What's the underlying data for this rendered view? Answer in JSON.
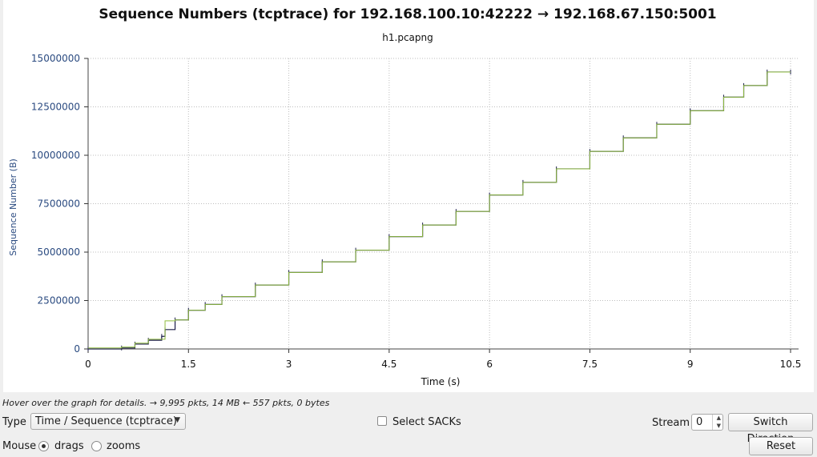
{
  "chart_data": {
    "type": "line",
    "title": "Sequence Numbers (tcptrace) for 192.168.100.10:42222 → 192.168.67.150:5001",
    "subtitle": "h1.pcapng",
    "xlabel": "Time (s)",
    "ylabel": "Sequence Number (B)",
    "xlim": [
      0,
      10.5
    ],
    "ylim": [
      0,
      15000000
    ],
    "x_ticks": [
      0,
      1.5,
      3,
      4.5,
      6,
      7.5,
      9,
      10.5
    ],
    "x_tick_labels": [
      "0",
      "1.5",
      "3",
      "4.5",
      "6",
      "7.5",
      "9",
      "10.5"
    ],
    "y_ticks": [
      0,
      2500000,
      5000000,
      7500000,
      10000000,
      12500000,
      15000000
    ],
    "y_tick_labels": [
      "0",
      "2500000",
      "5000000",
      "7500000",
      "10000000",
      "12500000",
      "15000000"
    ],
    "grid": true,
    "series": [
      {
        "color": "#1c1c4a",
        "x": [
          0.0,
          0.5,
          0.7,
          0.9,
          1.1,
          1.15,
          1.3,
          1.5,
          1.75,
          2.0,
          2.5,
          3.0,
          3.5,
          4.0,
          4.5,
          5.0,
          5.5,
          6.0,
          6.5,
          7.0,
          7.5,
          8.0,
          8.5,
          9.0,
          9.5,
          9.8,
          10.15,
          10.5
        ],
        "values": [
          0,
          50000,
          250000,
          450000,
          650000,
          1000000,
          1500000,
          2000000,
          2300000,
          2700000,
          3300000,
          3950000,
          4500000,
          5100000,
          5800000,
          6400000,
          7100000,
          7950000,
          8600000,
          9300000,
          10200000,
          10900000,
          11600000,
          12300000,
          13000000,
          13600000,
          14300000,
          14300000
        ]
      },
      {
        "color": "#8fbc3f",
        "x": [
          0.0,
          0.5,
          0.7,
          0.9,
          1.15,
          1.3,
          1.5,
          1.75,
          2.0,
          2.5,
          3.0,
          3.5,
          4.0,
          4.5,
          5.0,
          5.5,
          6.0,
          6.5,
          7.0,
          7.5,
          8.0,
          8.5,
          9.0,
          9.5,
          9.8,
          10.15,
          10.5
        ],
        "values": [
          50000,
          100000,
          300000,
          500000,
          1450000,
          1500000,
          2000000,
          2300000,
          2700000,
          3300000,
          3950000,
          4500000,
          5100000,
          5800000,
          6400000,
          7100000,
          7950000,
          8600000,
          9300000,
          10200000,
          10900000,
          11600000,
          12300000,
          13000000,
          13600000,
          14300000,
          14300000
        ]
      }
    ]
  },
  "status": {
    "text": "Hover over the graph for details. → 9,995 pkts, 14 MB ← 557 pkts, 0 bytes"
  },
  "controls": {
    "type_label": "Type",
    "type_value": "Time / Sequence (tcptrace)",
    "select_sacks_label": "Select SACKs",
    "select_sacks_checked": false,
    "stream_label": "Stream",
    "stream_value": "0",
    "switch_direction_label": "Switch Direction",
    "mouse_label": "Mouse",
    "drags_label": "drags",
    "zooms_label": "zooms",
    "mouse_mode": "drags",
    "reset_label": "Reset"
  },
  "colors": {
    "axis_text": "#2a4a80",
    "grid": "#bdbdbd"
  }
}
